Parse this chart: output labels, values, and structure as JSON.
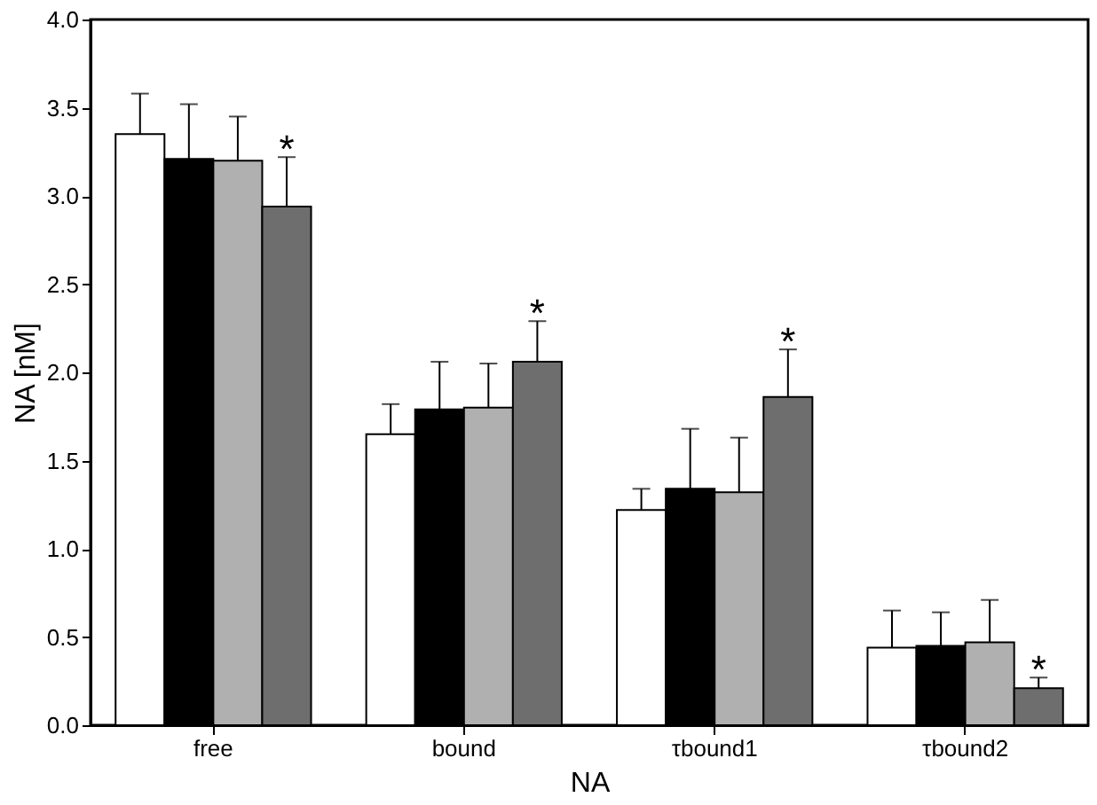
{
  "chart_data": {
    "type": "bar",
    "xlabel": "NA",
    "ylabel": "NA [nM]",
    "categories": [
      "free",
      "bound",
      "τbound1",
      "τbound2"
    ],
    "series": [
      {
        "color": "#ffffff",
        "values": [
          3.35,
          1.65,
          1.22,
          0.44
        ],
        "errors": [
          [
            3.35,
            3.58
          ],
          [
            1.65,
            1.82
          ],
          [
            1.22,
            1.34
          ],
          [
            0.44,
            0.65
          ]
        ]
      },
      {
        "color": "#000000",
        "values": [
          3.21,
          1.79,
          1.34,
          0.45
        ],
        "errors": [
          [
            3.21,
            3.52
          ],
          [
            1.79,
            2.06
          ],
          [
            1.34,
            1.68
          ],
          [
            0.45,
            0.64
          ]
        ]
      },
      {
        "color": "#b0b0b0",
        "values": [
          3.2,
          1.8,
          1.32,
          0.47
        ],
        "errors": [
          [
            3.2,
            3.45
          ],
          [
            1.8,
            2.05
          ],
          [
            1.32,
            1.63
          ],
          [
            0.47,
            0.71
          ]
        ]
      },
      {
        "color": "#6e6e6e",
        "values": [
          2.94,
          2.06,
          1.86,
          0.21
        ],
        "errors": [
          [
            2.94,
            3.22
          ],
          [
            2.06,
            2.29
          ],
          [
            1.86,
            2.13
          ],
          [
            0.21,
            0.27
          ]
        ],
        "value_labels": [
          "*",
          "*",
          "*",
          "*"
        ]
      }
    ],
    "ylim": [
      0,
      4
    ],
    "yticks": [
      {
        "value": 0,
        "label": "0.0"
      },
      0.5,
      {
        "value": 1,
        "label": "1.0"
      },
      1.5,
      {
        "value": 2,
        "label": "2.0"
      },
      2.5,
      {
        "value": 3,
        "label": "3.0"
      },
      3.5,
      {
        "value": 4,
        "label": "4.0"
      }
    ],
    "grid": false
  }
}
